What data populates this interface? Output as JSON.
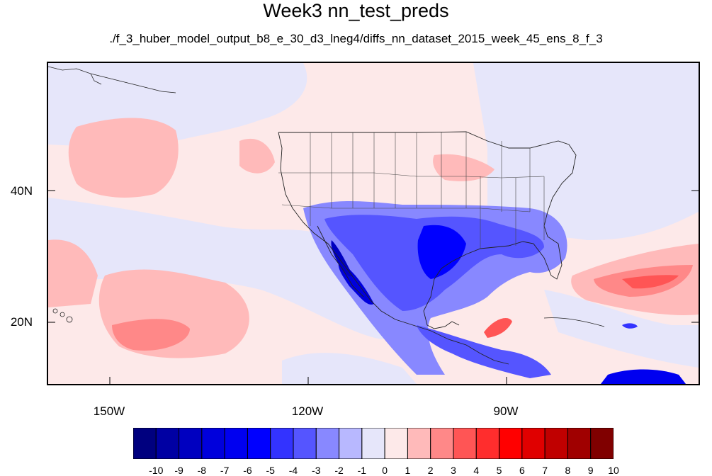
{
  "title": "Week3 nn_test_preds",
  "subtitle": "./f_3_huber_model_output_b8_e_30_d3_lneg4/diffs_nn_dataset_2015_week_45_ens_8_f_3",
  "map": {
    "lon_range": [
      -159.4,
      -61.1
    ],
    "lat_range": [
      11.0,
      59.5
    ],
    "lat_labels": [
      "40N",
      "20N"
    ],
    "lon_labels": [
      "150W",
      "120W",
      "90W"
    ]
  },
  "colorbar": {
    "labels": [
      "-10",
      "-9",
      "-8",
      "-7",
      "-6",
      "-5",
      "-4",
      "-3",
      "-2",
      "-1",
      "0",
      "1",
      "2",
      "3",
      "4",
      "5",
      "6",
      "7",
      "8",
      "9",
      "10"
    ],
    "colors": [
      "#00007f",
      "#0000a3",
      "#0000c0",
      "#0000dc",
      "#0000f0",
      "#0000ff",
      "#3333ff",
      "#5555ff",
      "#8888ff",
      "#b8b8ff",
      "#e6e6fa",
      "#fde9e9",
      "#ffbaba",
      "#ff8888",
      "#ff5555",
      "#ff2d2d",
      "#ff0000",
      "#e00000",
      "#c00000",
      "#a00000",
      "#800000"
    ]
  }
}
